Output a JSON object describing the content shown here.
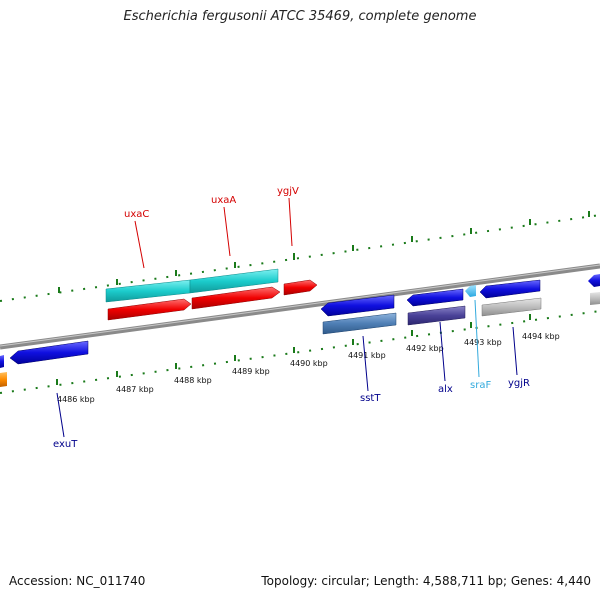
{
  "title": "Escherichia fergusonii ATCC 35469, complete genome",
  "footer": {
    "accession": "Accession: NC_011740",
    "summary": "Topology: circular; Length: 4,588,711 bp; Genes: 4,440"
  },
  "ticks": [
    "4486 kbp",
    "4487 kbp",
    "4488 kbp",
    "4489 kbp",
    "4490 kbp",
    "4491 kbp",
    "4492 kbp",
    "4493 kbp",
    "4494 kbp"
  ],
  "gene_labels": [
    {
      "name": "uxaC",
      "color": "#d40000"
    },
    {
      "name": "uxaA",
      "color": "#d40000"
    },
    {
      "name": "ygjV",
      "color": "#d40000"
    },
    {
      "name": "exuT",
      "color": "#00008b"
    },
    {
      "name": "sstT",
      "color": "#00008b"
    },
    {
      "name": "alx",
      "color": "#00008b"
    },
    {
      "name": "sraF",
      "color": "#33aadd"
    },
    {
      "name": "ygjR",
      "color": "#00008b"
    }
  ]
}
